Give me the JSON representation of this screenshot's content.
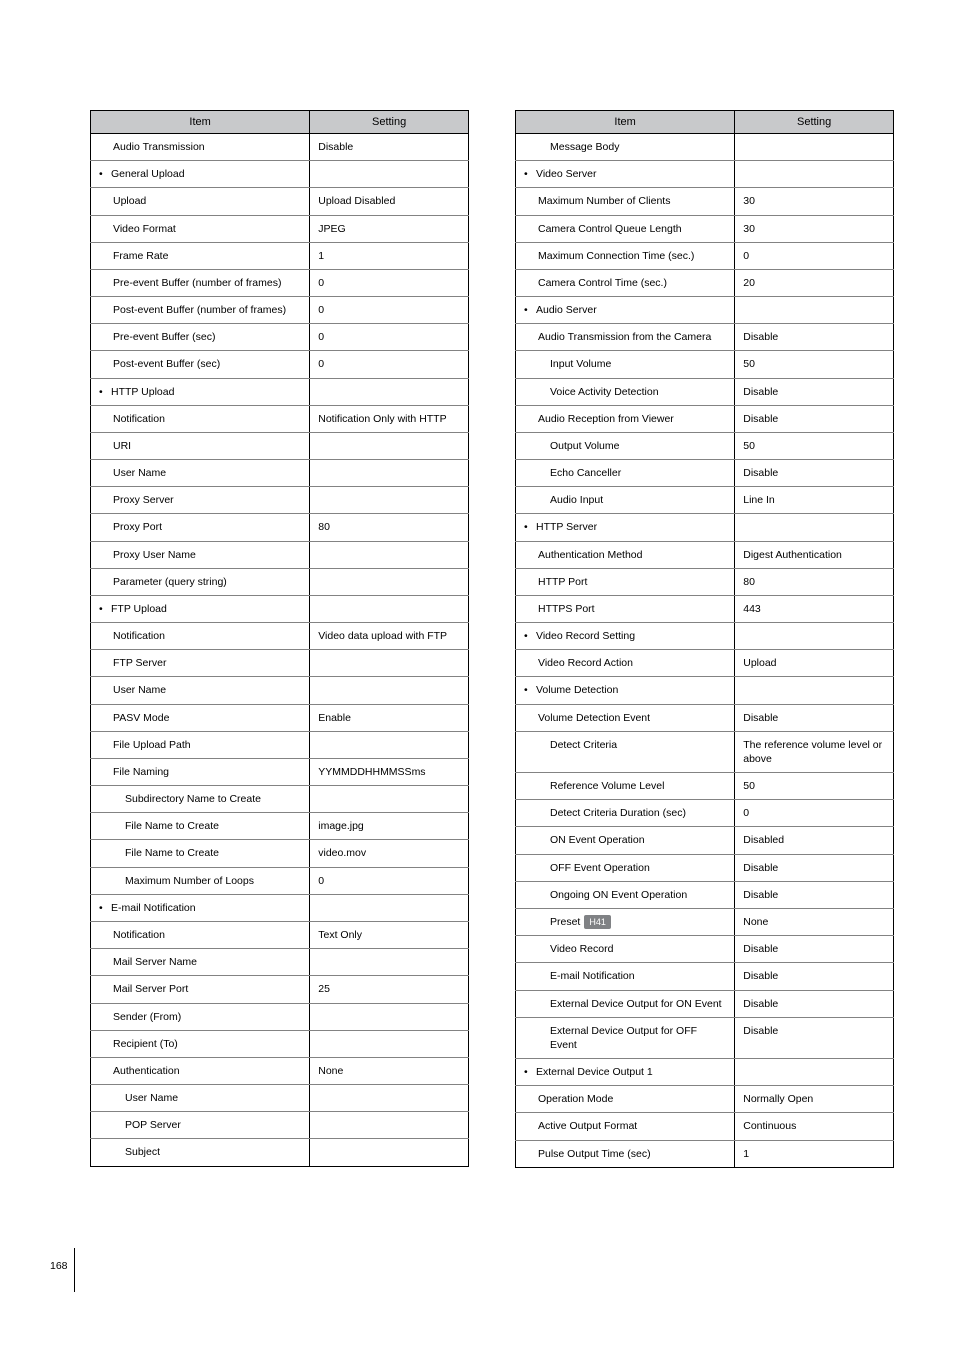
{
  "headers": {
    "item": "Item",
    "setting": "Setting"
  },
  "page_number": "168",
  "badge_label": "H41",
  "left_table": [
    {
      "type": "row",
      "indent": 1,
      "item": "Audio Transmission",
      "setting": "Disable"
    },
    {
      "type": "bullet",
      "item": "General Upload",
      "setting": ""
    },
    {
      "type": "row",
      "indent": 1,
      "item": "Upload",
      "setting": "Upload Disabled"
    },
    {
      "type": "row",
      "indent": 1,
      "item": "Video Format",
      "setting": "JPEG"
    },
    {
      "type": "row",
      "indent": 1,
      "item": "Frame Rate",
      "setting": "1"
    },
    {
      "type": "row",
      "indent": 1,
      "item": "Pre-event Buffer (number of frames)",
      "setting": "0"
    },
    {
      "type": "row",
      "indent": 1,
      "item": "Post-event Buffer (number of frames)",
      "setting": "0"
    },
    {
      "type": "row",
      "indent": 1,
      "item": "Pre-event Buffer (sec)",
      "setting": "0"
    },
    {
      "type": "row",
      "indent": 1,
      "item": "Post-event Buffer (sec)",
      "setting": "0"
    },
    {
      "type": "bullet",
      "item": "HTTP Upload",
      "setting": ""
    },
    {
      "type": "row",
      "indent": 1,
      "item": "Notification",
      "setting": "Notification Only with HTTP"
    },
    {
      "type": "row",
      "indent": 1,
      "item": "URI",
      "setting": ""
    },
    {
      "type": "row",
      "indent": 1,
      "item": "User Name",
      "setting": ""
    },
    {
      "type": "row",
      "indent": 1,
      "item": "Proxy Server",
      "setting": ""
    },
    {
      "type": "row",
      "indent": 1,
      "item": "Proxy Port",
      "setting": "80"
    },
    {
      "type": "row",
      "indent": 1,
      "item": "Proxy User Name",
      "setting": ""
    },
    {
      "type": "row",
      "indent": 1,
      "item": "Parameter (query string)",
      "setting": ""
    },
    {
      "type": "bullet",
      "item": "FTP Upload",
      "setting": ""
    },
    {
      "type": "row",
      "indent": 1,
      "item": "Notification",
      "setting": "Video data upload with FTP"
    },
    {
      "type": "row",
      "indent": 1,
      "item": "FTP Server",
      "setting": ""
    },
    {
      "type": "row",
      "indent": 1,
      "item": "User Name",
      "setting": ""
    },
    {
      "type": "row",
      "indent": 1,
      "item": "PASV Mode",
      "setting": "Enable"
    },
    {
      "type": "row",
      "indent": 1,
      "item": "File Upload Path",
      "setting": ""
    },
    {
      "type": "row",
      "indent": 1,
      "item": "File Naming",
      "setting": "YYMMDDHHMMSSms"
    },
    {
      "type": "row",
      "indent": 2,
      "item": "Subdirectory Name to Create",
      "setting": ""
    },
    {
      "type": "row",
      "indent": 2,
      "item": "File Name to Create",
      "setting": "image.jpg"
    },
    {
      "type": "row",
      "indent": 2,
      "item": "File Name to Create",
      "setting": "video.mov"
    },
    {
      "type": "row",
      "indent": 2,
      "item": "Maximum Number of Loops",
      "setting": "0"
    },
    {
      "type": "bullet",
      "item": "E-mail Notification",
      "setting": ""
    },
    {
      "type": "row",
      "indent": 1,
      "item": "Notification",
      "setting": "Text Only"
    },
    {
      "type": "row",
      "indent": 1,
      "item": "Mail Server Name",
      "setting": ""
    },
    {
      "type": "row",
      "indent": 1,
      "item": "Mail Server Port",
      "setting": "25"
    },
    {
      "type": "row",
      "indent": 1,
      "item": "Sender (From)",
      "setting": ""
    },
    {
      "type": "row",
      "indent": 1,
      "item": "Recipient (To)",
      "setting": ""
    },
    {
      "type": "row",
      "indent": 1,
      "item": "Authentication",
      "setting": "None"
    },
    {
      "type": "row",
      "indent": 2,
      "item": "User Name",
      "setting": ""
    },
    {
      "type": "row",
      "indent": 2,
      "item": "POP Server",
      "setting": ""
    },
    {
      "type": "row",
      "indent": 2,
      "item": "Subject",
      "setting": ""
    }
  ],
  "right_table": [
    {
      "type": "row",
      "indent": 2,
      "item": "Message Body",
      "setting": ""
    },
    {
      "type": "bullet",
      "item": "Video Server",
      "setting": ""
    },
    {
      "type": "row",
      "indent": 1,
      "item": "Maximum Number of Clients",
      "setting": "30"
    },
    {
      "type": "row",
      "indent": 1,
      "item": "Camera Control Queue Length",
      "setting": "30"
    },
    {
      "type": "row",
      "indent": 1,
      "item": "Maximum Connection Time (sec.)",
      "setting": "0"
    },
    {
      "type": "row",
      "indent": 1,
      "item": "Camera Control Time (sec.)",
      "setting": "20"
    },
    {
      "type": "bullet",
      "item": "Audio Server",
      "setting": ""
    },
    {
      "type": "row",
      "indent": 1,
      "item": "Audio Transmission from the Camera",
      "setting": "Disable"
    },
    {
      "type": "row",
      "indent": 2,
      "item": "Input Volume",
      "setting": "50"
    },
    {
      "type": "row",
      "indent": 2,
      "item": "Voice Activity Detection",
      "setting": "Disable"
    },
    {
      "type": "row",
      "indent": 1,
      "item": "Audio Reception from Viewer",
      "setting": "Disable"
    },
    {
      "type": "row",
      "indent": 2,
      "item": "Output Volume",
      "setting": "50"
    },
    {
      "type": "row",
      "indent": 2,
      "item": "Echo Canceller",
      "setting": "Disable"
    },
    {
      "type": "row",
      "indent": 2,
      "item": "Audio Input",
      "setting": "Line In"
    },
    {
      "type": "bullet",
      "item": "HTTP Server",
      "setting": ""
    },
    {
      "type": "row",
      "indent": 1,
      "item": "Authentication Method",
      "setting": "Digest Authentication"
    },
    {
      "type": "row",
      "indent": 1,
      "item": "HTTP Port",
      "setting": "80"
    },
    {
      "type": "row",
      "indent": 1,
      "item": "HTTPS Port",
      "setting": "443"
    },
    {
      "type": "bullet",
      "item": "Video Record Setting",
      "setting": ""
    },
    {
      "type": "row",
      "indent": 1,
      "item": "Video Record Action",
      "setting": "Upload"
    },
    {
      "type": "bullet",
      "item": "Volume Detection",
      "setting": ""
    },
    {
      "type": "row",
      "indent": 1,
      "item": "Volume Detection Event",
      "setting": "Disable"
    },
    {
      "type": "row",
      "indent": 2,
      "item": "Detect Criteria",
      "setting": "The reference volume level or above"
    },
    {
      "type": "row",
      "indent": 2,
      "item": "Reference Volume Level",
      "setting": "50"
    },
    {
      "type": "row",
      "indent": 2,
      "item": "Detect Criteria Duration (sec)",
      "setting": "0"
    },
    {
      "type": "row",
      "indent": 2,
      "item": "ON Event Operation",
      "setting": "Disabled"
    },
    {
      "type": "row",
      "indent": 2,
      "item": "OFF Event Operation",
      "setting": "Disable"
    },
    {
      "type": "row",
      "indent": 2,
      "item": "Ongoing ON Event Operation",
      "setting": "Disable"
    },
    {
      "type": "row",
      "indent": 2,
      "item": "Preset",
      "setting": "None",
      "badge": true
    },
    {
      "type": "row",
      "indent": 2,
      "item": "Video Record",
      "setting": "Disable"
    },
    {
      "type": "row",
      "indent": 2,
      "item": "E-mail Notification",
      "setting": "Disable"
    },
    {
      "type": "row",
      "indent": 2,
      "item": "External Device Output for ON Event",
      "setting": "Disable"
    },
    {
      "type": "row",
      "indent": 2,
      "item": "External Device Output for OFF Event",
      "setting": "Disable"
    },
    {
      "type": "bullet",
      "item": "External Device Output 1",
      "setting": ""
    },
    {
      "type": "row",
      "indent": 1,
      "item": "Operation Mode",
      "setting": "Normally Open"
    },
    {
      "type": "row",
      "indent": 1,
      "item": "Active Output Format",
      "setting": "Continuous"
    },
    {
      "type": "row",
      "indent": 1,
      "item": "Pulse Output Time (sec)",
      "setting": "1"
    }
  ]
}
